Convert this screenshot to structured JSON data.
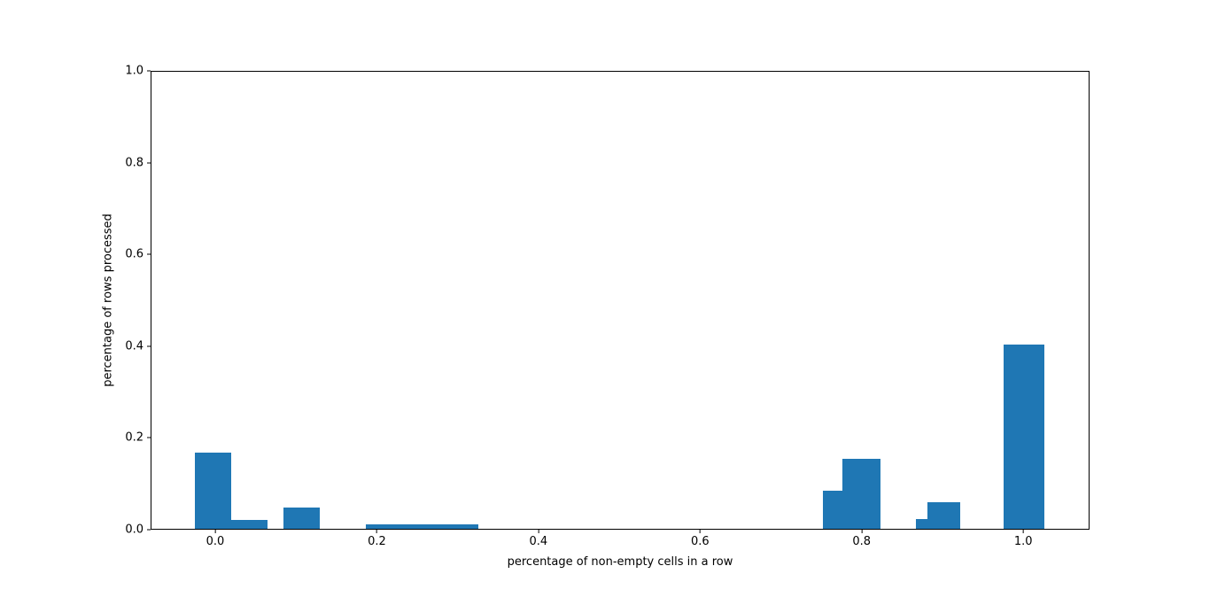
{
  "figure": {
    "background_color": "#ffffff",
    "spine_color": "#000000"
  },
  "chart_data": {
    "type": "bar",
    "subtype": "histogram",
    "title": "",
    "xlabel": "percentage of non-empty cells in a row",
    "ylabel": "percentage of rows processed",
    "bar_color": "#1f77b4",
    "grid": false,
    "legend": null,
    "xlim": [
      -0.08,
      1.082
    ],
    "ylim": [
      0,
      1.0
    ],
    "x_ticks": [
      0.0,
      0.2,
      0.4,
      0.6,
      0.8,
      1.0
    ],
    "x_tick_labels": [
      "0.0",
      "0.2",
      "0.4",
      "0.6",
      "0.8",
      "1.0"
    ],
    "y_ticks": [
      0.0,
      0.2,
      0.4,
      0.6,
      0.8,
      1.0
    ],
    "y_tick_labels": [
      "0.0",
      "0.2",
      "0.4",
      "0.6",
      "0.8",
      "1.0"
    ],
    "bars": [
      {
        "x0": -0.026,
        "x1": 0.019,
        "height": 0.166
      },
      {
        "x0": 0.019,
        "x1": 0.064,
        "height": 0.02
      },
      {
        "x0": 0.084,
        "x1": 0.129,
        "height": 0.047
      },
      {
        "x0": 0.186,
        "x1": 0.325,
        "height": 0.01
      },
      {
        "x0": 0.753,
        "x1": 0.777,
        "height": 0.083
      },
      {
        "x0": 0.777,
        "x1": 0.824,
        "height": 0.154
      },
      {
        "x0": 0.868,
        "x1": 0.882,
        "height": 0.021
      },
      {
        "x0": 0.882,
        "x1": 0.923,
        "height": 0.058
      },
      {
        "x0": 0.977,
        "x1": 1.027,
        "height": 0.404
      }
    ]
  }
}
